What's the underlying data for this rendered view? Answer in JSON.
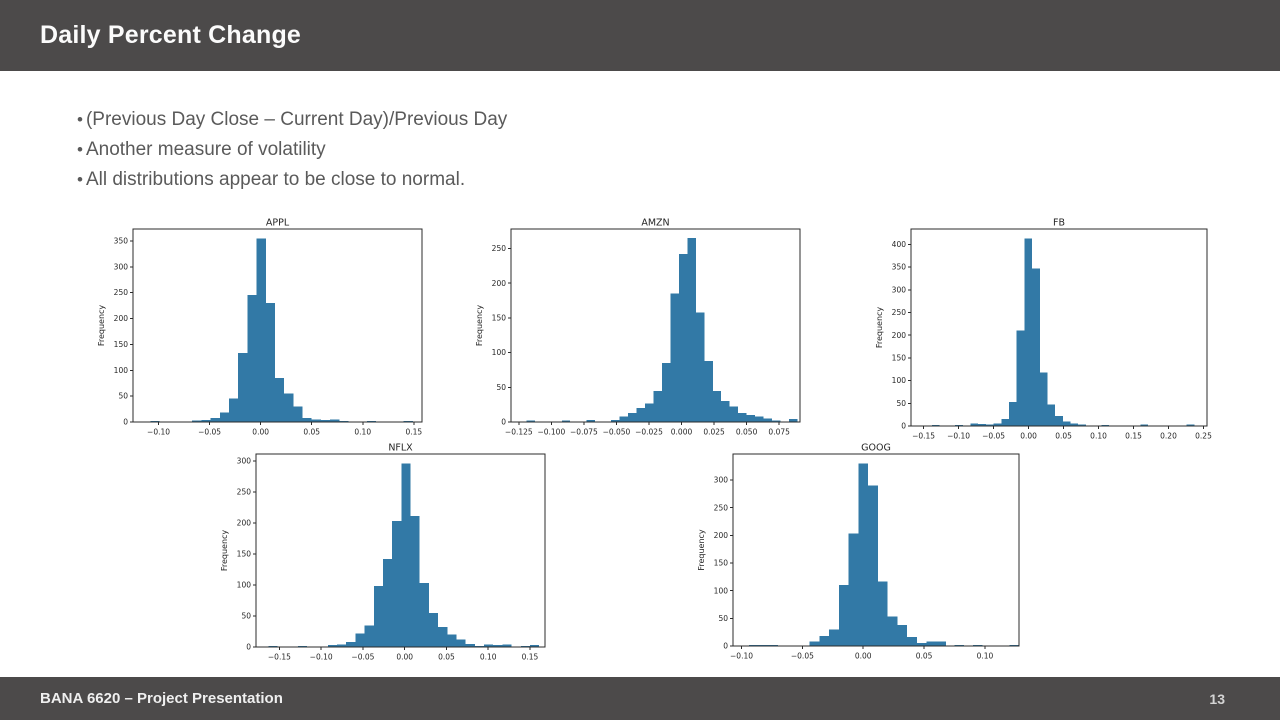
{
  "slide": {
    "header": {
      "title": "Daily Percent Change"
    },
    "bullet_char": "•",
    "bullets": [
      "(Previous Day Close  – Current Day)/Previous Day",
      "Another measure of volatility",
      "All distributions appear to be close to normal."
    ],
    "footer": {
      "text": "BANA 6620 – Project Presentation",
      "page_number": "13"
    }
  },
  "colors": {
    "bar": "#3279a6",
    "axis": "#2b2b2b",
    "chart_text": "#262626",
    "header_bg": "#4c4a4a"
  },
  "chart_data": [
    {
      "id": "appl",
      "type": "bar",
      "title": "APPL",
      "ylabel": "Frequency",
      "xlim": [
        -0.125,
        0.158
      ],
      "ylim": [
        0,
        373
      ],
      "x_ticks": [
        -0.1,
        -0.05,
        0.0,
        0.05,
        0.1,
        0.15
      ],
      "x_tick_labels": [
        "−0.10",
        "−0.05",
        "0.00",
        "0.05",
        "0.10",
        "0.15"
      ],
      "y_ticks": [
        0,
        50,
        100,
        150,
        200,
        250,
        300,
        350
      ],
      "bin_width": 0.009,
      "bars": [
        [
          -0.108,
          2
        ],
        [
          -0.067,
          3
        ],
        [
          -0.058,
          4
        ],
        [
          -0.049,
          8
        ],
        [
          -0.04,
          18
        ],
        [
          -0.031,
          45
        ],
        [
          -0.022,
          133
        ],
        [
          -0.013,
          245
        ],
        [
          -0.004,
          355
        ],
        [
          0.005,
          230
        ],
        [
          0.014,
          85
        ],
        [
          0.023,
          55
        ],
        [
          0.032,
          30
        ],
        [
          0.041,
          8
        ],
        [
          0.05,
          5
        ],
        [
          0.059,
          4
        ],
        [
          0.068,
          5
        ],
        [
          0.077,
          2
        ],
        [
          0.104,
          2
        ],
        [
          0.14,
          2
        ]
      ]
    },
    {
      "id": "amzn",
      "type": "bar",
      "title": "AMZN",
      "ylabel": "Frequency",
      "xlim": [
        -0.131,
        0.091
      ],
      "ylim": [
        0,
        278
      ],
      "x_ticks": [
        -0.125,
        -0.1,
        -0.075,
        -0.05,
        -0.025,
        0.0,
        0.025,
        0.05,
        0.075
      ],
      "x_tick_labels": [
        "−0.125",
        "−0.100",
        "−0.075",
        "−0.050",
        "−0.025",
        "0.000",
        "0.025",
        "0.050",
        "0.075"
      ],
      "y_ticks": [
        0,
        50,
        100,
        150,
        200,
        250
      ],
      "bin_width": 0.0065,
      "bars": [
        [
          -0.119,
          2
        ],
        [
          -0.092,
          2
        ],
        [
          -0.073,
          3
        ],
        [
          -0.054,
          3
        ],
        [
          -0.0475,
          8
        ],
        [
          -0.041,
          13
        ],
        [
          -0.0345,
          20
        ],
        [
          -0.028,
          27
        ],
        [
          -0.0215,
          45
        ],
        [
          -0.015,
          85
        ],
        [
          -0.0085,
          185
        ],
        [
          -0.002,
          242
        ],
        [
          0.0045,
          265
        ],
        [
          0.011,
          158
        ],
        [
          0.0175,
          88
        ],
        [
          0.024,
          45
        ],
        [
          0.0305,
          30
        ],
        [
          0.037,
          22
        ],
        [
          0.0435,
          13
        ],
        [
          0.05,
          10
        ],
        [
          0.0565,
          8
        ],
        [
          0.063,
          5
        ],
        [
          0.0695,
          2
        ],
        [
          0.0825,
          4
        ]
      ]
    },
    {
      "id": "fb",
      "type": "bar",
      "title": "FB",
      "ylabel": "Frequency",
      "xlim": [
        -0.168,
        0.255
      ],
      "ylim": [
        0,
        434
      ],
      "x_ticks": [
        -0.15,
        -0.1,
        -0.05,
        0.0,
        0.05,
        0.1,
        0.15,
        0.2,
        0.25
      ],
      "x_tick_labels": [
        "−0.15",
        "−0.10",
        "−0.05",
        "0.00",
        "0.05",
        "0.10",
        "0.15",
        "0.20",
        "0.25"
      ],
      "y_ticks": [
        0,
        50,
        100,
        150,
        200,
        250,
        300,
        350,
        400
      ],
      "bin_width": 0.011,
      "bars": [
        [
          -0.138,
          2
        ],
        [
          -0.105,
          2
        ],
        [
          -0.083,
          5
        ],
        [
          -0.072,
          4
        ],
        [
          -0.061,
          3
        ],
        [
          -0.05,
          6
        ],
        [
          -0.039,
          15
        ],
        [
          -0.028,
          53
        ],
        [
          -0.017,
          210
        ],
        [
          -0.006,
          413
        ],
        [
          0.005,
          347
        ],
        [
          0.016,
          118
        ],
        [
          0.027,
          47
        ],
        [
          0.038,
          22
        ],
        [
          0.049,
          10
        ],
        [
          0.06,
          5
        ],
        [
          0.071,
          3
        ],
        [
          0.104,
          2
        ],
        [
          0.16,
          3
        ],
        [
          0.226,
          3
        ]
      ]
    },
    {
      "id": "nflx",
      "type": "bar",
      "title": "NFLX",
      "ylabel": "Frequency",
      "xlim": [
        -0.178,
        0.168
      ],
      "ylim": [
        0,
        311
      ],
      "x_ticks": [
        -0.15,
        -0.1,
        -0.05,
        0.0,
        0.05,
        0.1,
        0.15
      ],
      "x_tick_labels": [
        "−0.15",
        "−0.10",
        "−0.05",
        "0.00",
        "0.05",
        "0.10",
        "0.15"
      ],
      "y_ticks": [
        0,
        50,
        100,
        150,
        200,
        250,
        300
      ],
      "bin_width": 0.011,
      "bars": [
        [
          -0.163,
          2
        ],
        [
          -0.128,
          2
        ],
        [
          -0.092,
          3
        ],
        [
          -0.081,
          4
        ],
        [
          -0.07,
          8
        ],
        [
          -0.059,
          22
        ],
        [
          -0.048,
          35
        ],
        [
          -0.037,
          98
        ],
        [
          -0.026,
          142
        ],
        [
          -0.015,
          203
        ],
        [
          -0.004,
          296
        ],
        [
          0.007,
          211
        ],
        [
          0.018,
          103
        ],
        [
          0.029,
          55
        ],
        [
          0.04,
          32
        ],
        [
          0.051,
          20
        ],
        [
          0.062,
          12
        ],
        [
          0.073,
          5
        ],
        [
          0.084,
          2
        ],
        [
          0.095,
          4
        ],
        [
          0.106,
          3
        ],
        [
          0.117,
          4
        ],
        [
          0.139,
          2
        ],
        [
          0.15,
          3
        ]
      ]
    },
    {
      "id": "goog",
      "type": "bar",
      "title": "GOOG",
      "ylabel": "Frequency",
      "xlim": [
        -0.107,
        0.128
      ],
      "ylim": [
        0,
        347
      ],
      "x_ticks": [
        -0.1,
        -0.05,
        0.0,
        0.05,
        0.1
      ],
      "x_tick_labels": [
        "−0.10",
        "−0.05",
        "0.00",
        "0.05",
        "0.10"
      ],
      "y_ticks": [
        0,
        50,
        100,
        150,
        200,
        250,
        300
      ],
      "bin_width": 0.008,
      "bars": [
        [
          -0.094,
          2
        ],
        [
          -0.086,
          2
        ],
        [
          -0.078,
          2
        ],
        [
          -0.044,
          8
        ],
        [
          -0.036,
          18
        ],
        [
          -0.028,
          30
        ],
        [
          -0.02,
          110
        ],
        [
          -0.012,
          203
        ],
        [
          -0.004,
          330
        ],
        [
          0.004,
          290
        ],
        [
          0.012,
          117
        ],
        [
          0.02,
          53
        ],
        [
          0.028,
          38
        ],
        [
          0.036,
          16
        ],
        [
          0.044,
          5
        ],
        [
          0.052,
          8
        ],
        [
          0.06,
          8
        ],
        [
          0.075,
          2
        ],
        [
          0.09,
          2
        ],
        [
          0.12,
          2
        ]
      ]
    }
  ]
}
